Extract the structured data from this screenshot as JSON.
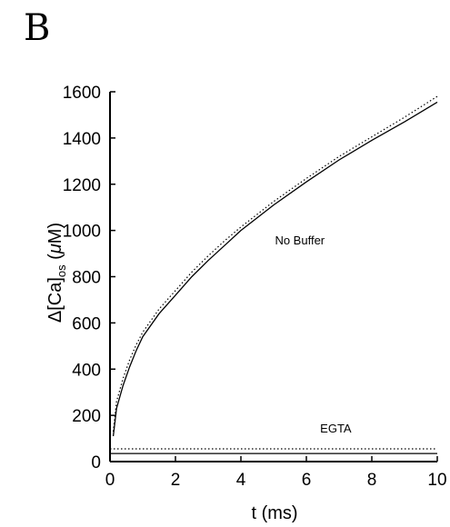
{
  "panel_label": "B",
  "chart_data": {
    "type": "line",
    "title": "",
    "xlabel": "t (ms)",
    "ylabel_parts": {
      "prefix": "Δ[Ca]",
      "subscript": "os",
      "unit_open": " (",
      "unit_mu": "μ",
      "unit_rest": "M)"
    },
    "xlim": [
      0,
      10
    ],
    "ylim": [
      0,
      1600
    ],
    "xticks": [
      0,
      2,
      4,
      6,
      8,
      10
    ],
    "yticks": [
      0,
      200,
      400,
      600,
      800,
      1000,
      1200,
      1400,
      1600
    ],
    "grid": false,
    "legend": "none",
    "annotations": [
      {
        "text": "No Buffer",
        "x": 5.8,
        "y": 940
      },
      {
        "text": "EGTA",
        "x": 6.9,
        "y": 125
      }
    ],
    "series": [
      {
        "style": "solid",
        "x": [
          0.1,
          0.2,
          0.4,
          0.6,
          0.8,
          1,
          1.5,
          2,
          2.5,
          3,
          3.5,
          4,
          5,
          6,
          7,
          8,
          9,
          10
        ],
        "y": [
          110,
          230,
          330,
          410,
          480,
          540,
          640,
          720,
          800,
          870,
          935,
          1000,
          1110,
          1210,
          1305,
          1390,
          1470,
          1555
        ]
      },
      {
        "style": "dotted",
        "x": [
          0.1,
          0.2,
          0.4,
          0.6,
          0.8,
          1,
          1.5,
          2,
          2.5,
          3,
          3.5,
          4,
          5,
          6,
          7,
          8,
          9,
          10
        ],
        "y": [
          130,
          260,
          360,
          440,
          505,
          560,
          660,
          740,
          820,
          890,
          955,
          1015,
          1125,
          1225,
          1320,
          1405,
          1490,
          1580
        ]
      },
      {
        "style": "solid",
        "x": [
          0,
          10
        ],
        "y": [
          35,
          35
        ]
      },
      {
        "style": "dotted",
        "x": [
          0,
          10
        ],
        "y": [
          55,
          55
        ]
      }
    ]
  }
}
